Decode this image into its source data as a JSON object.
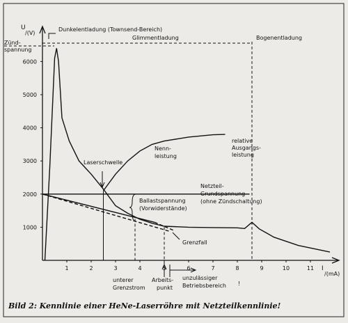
{
  "chart_data": {
    "type": "line",
    "ylabel": "U",
    "yunit": "/(V)",
    "xlabel": "I",
    "xunit": "/(mA)",
    "caption": "Bild 2: Kennlinie einer HeNe-Laserröhre mit Netzteilkennlinie!",
    "xlim": [
      0,
      11.8
    ],
    "ylim": [
      0,
      6800
    ],
    "xticks": [
      1,
      2,
      3,
      4,
      5,
      6,
      7,
      8,
      9,
      10,
      11
    ],
    "yticks": [
      1000,
      2000,
      3000,
      4000,
      5000,
      6000
    ],
    "series": [
      {
        "color": "#111111",
        "dash": false,
        "x": [
          0.1,
          0.3,
          0.5,
          0.58,
          0.66,
          0.8,
          1.1,
          1.5,
          2,
          2.5,
          3,
          3.5,
          4,
          4.5,
          5,
          6,
          7,
          8,
          8.3,
          8.6,
          8.9,
          9.5,
          10.5,
          11.8
        ],
        "values": [
          0,
          2800,
          6100,
          6400,
          6000,
          4300,
          3600,
          3000,
          2600,
          2150,
          1650,
          1420,
          1240,
          1120,
          1030,
          1000,
          990,
          980,
          960,
          1150,
          950,
          700,
          450,
          250
        ]
      },
      {
        "color": "#111111",
        "dash": false,
        "x": [
          2.5,
          3,
          3.5,
          4,
          4.5,
          5,
          6,
          7,
          7.5
        ],
        "values": [
          2100,
          2600,
          3000,
          3300,
          3500,
          3600,
          3720,
          3790,
          3800
        ]
      },
      {
        "color": "#111111",
        "dash": false,
        "x": [
          0,
          8.5
        ],
        "values": [
          2000,
          2000
        ]
      },
      {
        "color": "#111111",
        "dash": false,
        "x": [
          0,
          4.6
        ],
        "values": [
          2000,
          1150
        ]
      },
      {
        "color": "#111111",
        "dash": true,
        "x": [
          4.6,
          5.4
        ],
        "values": [
          1150,
          900
        ]
      },
      {
        "color": "#111111",
        "dash": true,
        "x": [
          0,
          5.2
        ],
        "values": [
          2000,
          880
        ]
      }
    ],
    "vlines": [
      {
        "x": 2.5,
        "y": 2100,
        "dash": false
      },
      {
        "x": 3.8,
        "y": 1250,
        "dash": true
      },
      {
        "x": 5.0,
        "y": 1000,
        "dash": true
      },
      {
        "x": 8.6,
        "y": 6600,
        "dash": true
      }
    ],
    "annotations": [
      "Dunkelentladung (Townsend-Bereich)",
      "Glimmentladung",
      "Bogenentladung",
      "Zünd-",
      "spannung",
      "Laserschwelle",
      "Nenn-",
      "leistung",
      "relative",
      "Ausgangs-",
      "leistung",
      "Netzteil-",
      "Grundspannung",
      "(ohne Zündschaltung)",
      "Ballastspannung",
      "(Vorwiderstände)",
      "Grenzfall",
      "unterer",
      "Grenzstrom",
      "Arbeits-",
      "punkt",
      "unzulässiger",
      "Betriebsbereich",
      "!"
    ]
  }
}
